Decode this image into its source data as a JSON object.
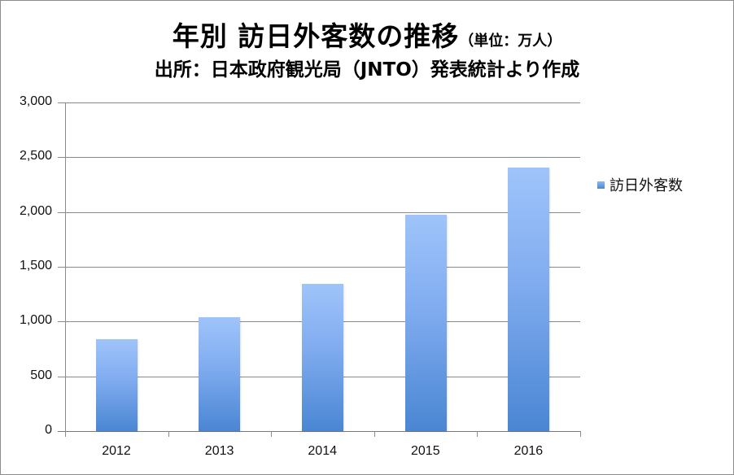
{
  "chart_data": {
    "type": "bar",
    "title": "年別 訪日外客数の推移",
    "title_unit": "（単位：万人）",
    "subtitle": "出所：日本政府観光局（JNTO）発表統計より作成",
    "categories": [
      "2012",
      "2013",
      "2014",
      "2015",
      "2016"
    ],
    "series": [
      {
        "name": "訪日外客数",
        "values": [
          836,
          1036,
          1341,
          1974,
          2404
        ],
        "color": "#5b8fd9"
      }
    ],
    "xlabel": "",
    "ylabel": "",
    "ylim": [
      0,
      3000
    ],
    "yticks": [
      "0",
      "500",
      "1,000",
      "1,500",
      "2,000",
      "2,500",
      "3,000"
    ],
    "grid": true,
    "legend_position": "right"
  },
  "header": {
    "title": "年別 訪日外客数の推移",
    "unit": "（単位：万人）",
    "source": "出所：日本政府観光局（JNTO）発表統計より作成"
  },
  "legend": {
    "label": "訪日外客数"
  }
}
